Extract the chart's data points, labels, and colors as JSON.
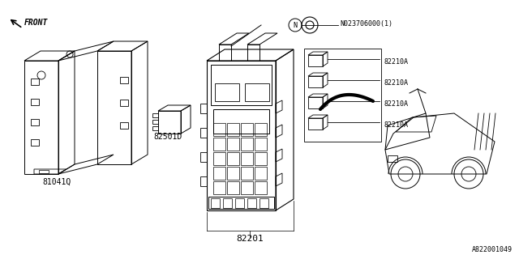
{
  "bg_color": "#ffffff",
  "line_color": "#000000",
  "diagram_id": "A822001049",
  "labels": {
    "front": "FRONT",
    "part1": "81041Q",
    "part2": "82501D",
    "part3": "82201",
    "part4": "N023706000(1)",
    "part5_1": "82210A",
    "part5_2": "82210A",
    "part5_3": "82210A",
    "part5_4": "82210A"
  },
  "font_size_main": 7,
  "font_size_small": 6,
  "font_size_label": 8,
  "bracket_color": "#888888",
  "thin_line": 0.5,
  "med_line": 0.8,
  "thick_line": 2.5
}
